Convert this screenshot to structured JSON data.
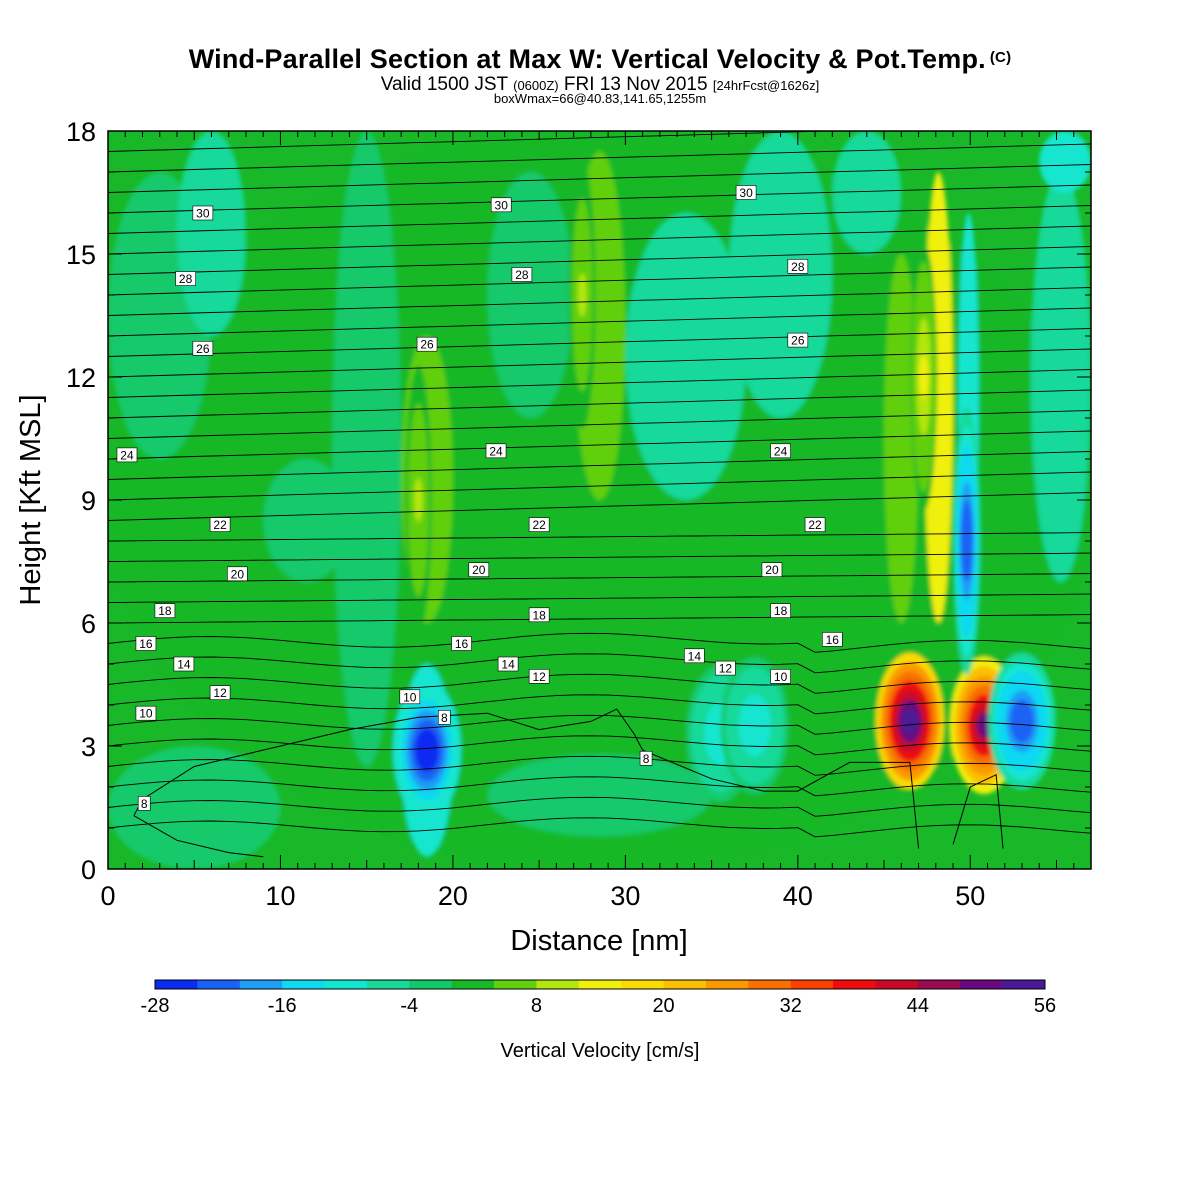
{
  "title": {
    "main": "Wind-Parallel Section at Max W: Vertical Velocity & Pot.Temp.",
    "main_tag": "(C)",
    "sub_a": "Valid 1500 JST",
    "sub_b": "(0600Z)",
    "sub_c": "FRI 13 Nov 2015",
    "sub_d": "[24hrFcst@1626z]",
    "sub2": "boxWmax=66@40.83,141.65,1255m"
  },
  "chart_data": {
    "type": "heatmap",
    "xlabel": "Distance [nm]",
    "ylabel": "Height [Kft MSL]",
    "xlim": [
      0,
      57
    ],
    "ylim": [
      0,
      18
    ],
    "xticks": [
      0,
      10,
      20,
      30,
      40,
      50
    ],
    "yticks": [
      0,
      3,
      6,
      9,
      12,
      15,
      18
    ],
    "colorbar": {
      "title": "Vertical Velocity [cm/s]",
      "ticks": [
        -28,
        -16,
        -4,
        8,
        20,
        32,
        44,
        56
      ],
      "levels": [
        -28,
        -24,
        -20,
        -16,
        -12,
        -8,
        -4,
        0,
        4,
        8,
        12,
        16,
        20,
        24,
        28,
        32,
        36,
        40,
        44,
        48,
        52,
        56
      ],
      "colors": [
        "#0a2bf0",
        "#1a62f5",
        "#1e9ef5",
        "#10d9f2",
        "#12e6cf",
        "#18d99a",
        "#12c96a",
        "#18b828",
        "#60d010",
        "#b4e610",
        "#f0f00a",
        "#fadc00",
        "#fac000",
        "#fa9a00",
        "#f87000",
        "#f84000",
        "#f00c0c",
        "#c80a28",
        "#9a0a50",
        "#6a0a80",
        "#4a1a96"
      ]
    },
    "vertical_velocity_features": [
      {
        "x": 18.5,
        "y": 2.9,
        "peak_cm_s": -28
      },
      {
        "x": 35.5,
        "y": 3.3,
        "peak_cm_s": -12
      },
      {
        "x": 37.5,
        "y": 3.5,
        "peak_cm_s": -12
      },
      {
        "x": 46.5,
        "y": 3.6,
        "peak_cm_s": 56
      },
      {
        "x": 50.8,
        "y": 3.5,
        "peak_cm_s": 48
      },
      {
        "x": 53.0,
        "y": 3.6,
        "peak_cm_s": -24
      },
      {
        "x": 49.8,
        "y": 8.0,
        "peak_cm_s": -24
      },
      {
        "x": 47.3,
        "y": 12.0,
        "peak_cm_s": 12
      },
      {
        "x": 27.5,
        "y": 14.0,
        "peak_cm_s": 8
      },
      {
        "x": 18.0,
        "y": 9.0,
        "peak_cm_s": 8
      }
    ],
    "potential_temperature_labels": [
      {
        "value": "30",
        "x": 5.5,
        "y": 16.0
      },
      {
        "value": "30",
        "x": 22.8,
        "y": 16.2
      },
      {
        "value": "30",
        "x": 37.0,
        "y": 16.5
      },
      {
        "value": "28",
        "x": 4.5,
        "y": 14.4
      },
      {
        "value": "28",
        "x": 24.0,
        "y": 14.5
      },
      {
        "value": "28",
        "x": 40.0,
        "y": 14.7
      },
      {
        "value": "26",
        "x": 5.5,
        "y": 12.7
      },
      {
        "value": "26",
        "x": 18.5,
        "y": 12.8
      },
      {
        "value": "26",
        "x": 40.0,
        "y": 12.9
      },
      {
        "value": "24",
        "x": 1.1,
        "y": 10.1
      },
      {
        "value": "24",
        "x": 22.5,
        "y": 10.2
      },
      {
        "value": "24",
        "x": 39.0,
        "y": 10.2
      },
      {
        "value": "22",
        "x": 6.5,
        "y": 8.4
      },
      {
        "value": "22",
        "x": 25.0,
        "y": 8.4
      },
      {
        "value": "22",
        "x": 41.0,
        "y": 8.4
      },
      {
        "value": "20",
        "x": 7.5,
        "y": 7.2
      },
      {
        "value": "20",
        "x": 21.5,
        "y": 7.3
      },
      {
        "value": "20",
        "x": 38.5,
        "y": 7.3
      },
      {
        "value": "18",
        "x": 3.3,
        "y": 6.3
      },
      {
        "value": "18",
        "x": 25.0,
        "y": 6.2
      },
      {
        "value": "18",
        "x": 39.0,
        "y": 6.3
      },
      {
        "value": "16",
        "x": 2.2,
        "y": 5.5
      },
      {
        "value": "16",
        "x": 20.5,
        "y": 5.5
      },
      {
        "value": "16",
        "x": 42.0,
        "y": 5.6
      },
      {
        "value": "14",
        "x": 4.4,
        "y": 5.0
      },
      {
        "value": "14",
        "x": 23.2,
        "y": 5.0
      },
      {
        "value": "14",
        "x": 34.0,
        "y": 5.2
      },
      {
        "value": "12",
        "x": 6.5,
        "y": 4.3
      },
      {
        "value": "12",
        "x": 25.0,
        "y": 4.7
      },
      {
        "value": "12",
        "x": 35.8,
        "y": 4.9
      },
      {
        "value": "10",
        "x": 2.2,
        "y": 3.8
      },
      {
        "value": "10",
        "x": 17.5,
        "y": 4.2
      },
      {
        "value": "10",
        "x": 39.0,
        "y": 4.7
      },
      {
        "value": "8",
        "x": 19.5,
        "y": 3.7
      },
      {
        "value": "8",
        "x": 31.2,
        "y": 2.7
      },
      {
        "value": "8",
        "x": 2.1,
        "y": 1.6
      }
    ]
  },
  "icons": {
    "copyright": "copyright-tag"
  }
}
